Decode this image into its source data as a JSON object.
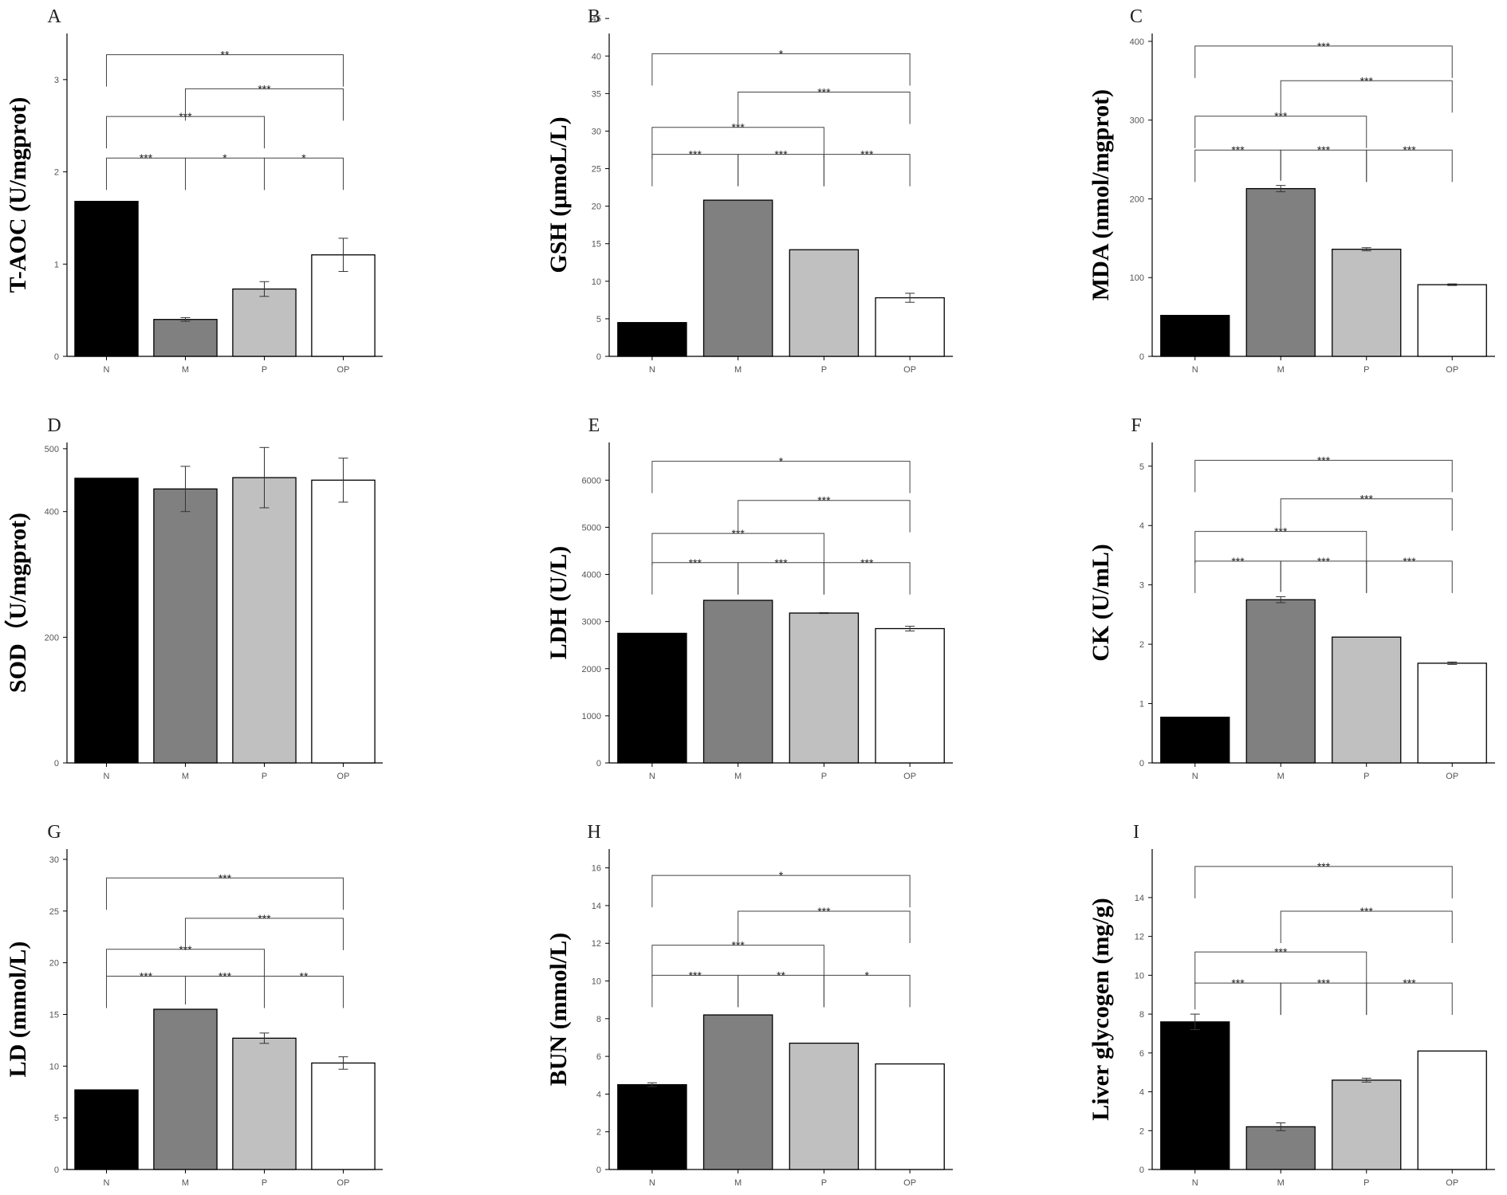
{
  "chart_data": [
    {
      "panel": "A",
      "type": "bar",
      "ylabel": "T-AOC (U/mgprot)",
      "categories": [
        "N",
        "M",
        "P",
        "OP"
      ],
      "values": [
        1.68,
        0.4,
        0.73,
        1.1
      ],
      "errors": [
        0,
        0.02,
        0.08,
        0.18
      ],
      "ylim": [
        0,
        3.5
      ],
      "yticks": [
        "0",
        "1",
        "2",
        "3"
      ],
      "ytick_values": [
        0,
        1,
        2,
        3
      ],
      "annotations": [
        {
          "from": 0,
          "to": 3,
          "level": 3.27,
          "text": "**"
        },
        {
          "from": 0,
          "to": 1,
          "level": 2.15,
          "text": "***"
        },
        {
          "from": 1,
          "to": 2,
          "level": 2.15,
          "text": "*"
        },
        {
          "from": 2,
          "to": 3,
          "level": 2.15,
          "text": "*"
        },
        {
          "from": 0,
          "to": 2,
          "level": 2.6,
          "text": "***"
        },
        {
          "from": 1,
          "to": 3,
          "level": 2.9,
          "text": "***"
        }
      ]
    },
    {
      "panel": "B",
      "type": "bar",
      "ylabel": "GSH (μmoL/L)",
      "categories": [
        "N",
        "M",
        "P",
        "OP"
      ],
      "values": [
        4.5,
        20.8,
        14.2,
        7.8
      ],
      "errors": [
        0,
        0,
        0,
        0.6
      ],
      "ylim": [
        0,
        43
      ],
      "yticks": [
        "0",
        "5",
        "10",
        "15",
        "20",
        "25",
        "30",
        "35",
        "40",
        "45"
      ],
      "ytick_values": [
        0,
        5,
        10,
        15,
        20,
        25,
        30,
        35,
        40,
        45
      ],
      "annotations": [
        {
          "from": 0,
          "to": 3,
          "level": 40.3,
          "text": "*"
        },
        {
          "from": 0,
          "to": 1,
          "level": 26.9,
          "text": "***"
        },
        {
          "from": 1,
          "to": 2,
          "level": 26.9,
          "text": "***"
        },
        {
          "from": 2,
          "to": 3,
          "level": 26.9,
          "text": "***"
        },
        {
          "from": 0,
          "to": 2,
          "level": 30.5,
          "text": "***"
        },
        {
          "from": 1,
          "to": 3,
          "level": 35.2,
          "text": "***"
        }
      ]
    },
    {
      "panel": "C",
      "type": "bar",
      "ylabel": "MDA (nmol/mgprot)",
      "categories": [
        "N",
        "M",
        "P",
        "OP"
      ],
      "values": [
        52,
        213,
        136,
        91
      ],
      "errors": [
        0,
        4,
        2,
        1
      ],
      "ylim": [
        0,
        410
      ],
      "yticks": [
        "0",
        "100",
        "200",
        "300",
        "400"
      ],
      "ytick_values": [
        0,
        100,
        200,
        300,
        400
      ],
      "annotations": [
        {
          "from": 0,
          "to": 3,
          "level": 394,
          "text": "***"
        },
        {
          "from": 0,
          "to": 1,
          "level": 262,
          "text": "***"
        },
        {
          "from": 1,
          "to": 2,
          "level": 262,
          "text": "***"
        },
        {
          "from": 2,
          "to": 3,
          "level": 262,
          "text": "***"
        },
        {
          "from": 0,
          "to": 2,
          "level": 305,
          "text": "***"
        },
        {
          "from": 1,
          "to": 3,
          "level": 350,
          "text": "***"
        }
      ]
    },
    {
      "panel": "D",
      "type": "bar",
      "ylabel": "SOD（U/mgprot)",
      "categories": [
        "N",
        "M",
        "P",
        "OP"
      ],
      "values": [
        453,
        436,
        454,
        450
      ],
      "errors": [
        0,
        36,
        48,
        35
      ],
      "ylim": [
        0,
        510
      ],
      "yticks": [
        "0",
        "200",
        "400",
        "500"
      ],
      "ytick_values": [
        0,
        200,
        400,
        500
      ],
      "annotations": []
    },
    {
      "panel": "E",
      "type": "bar",
      "ylabel": "LDH (U/L)",
      "categories": [
        "N",
        "M",
        "P",
        "OP"
      ],
      "values": [
        2750,
        3450,
        3180,
        2850
      ],
      "errors": [
        0,
        0,
        10,
        50
      ],
      "ylim": [
        0,
        6800
      ],
      "yticks": [
        "0",
        "1000",
        "2000",
        "3000",
        "4000",
        "5000",
        "6000"
      ],
      "ytick_values": [
        0,
        1000,
        2000,
        3000,
        4000,
        5000,
        6000
      ],
      "annotations": [
        {
          "from": 0,
          "to": 3,
          "level": 6400,
          "text": "*"
        },
        {
          "from": 0,
          "to": 1,
          "level": 4250,
          "text": "***"
        },
        {
          "from": 1,
          "to": 2,
          "level": 4250,
          "text": "***"
        },
        {
          "from": 2,
          "to": 3,
          "level": 4250,
          "text": "***"
        },
        {
          "from": 0,
          "to": 2,
          "level": 4870,
          "text": "***"
        },
        {
          "from": 1,
          "to": 3,
          "level": 5570,
          "text": "***"
        }
      ]
    },
    {
      "panel": "F",
      "type": "bar",
      "ylabel": "CK (U/mL)",
      "categories": [
        "N",
        "M",
        "P",
        "OP"
      ],
      "values": [
        0.77,
        2.75,
        2.12,
        1.68
      ],
      "errors": [
        0,
        0.05,
        0,
        0.02
      ],
      "ylim": [
        0,
        5.4
      ],
      "yticks": [
        "0",
        "1",
        "2",
        "3",
        "4",
        "5"
      ],
      "ytick_values": [
        0,
        1,
        2,
        3,
        4,
        5
      ],
      "annotations": [
        {
          "from": 0,
          "to": 3,
          "level": 5.1,
          "text": "***"
        },
        {
          "from": 0,
          "to": 1,
          "level": 3.4,
          "text": "***"
        },
        {
          "from": 1,
          "to": 2,
          "level": 3.4,
          "text": "***"
        },
        {
          "from": 2,
          "to": 3,
          "level": 3.4,
          "text": "***"
        },
        {
          "from": 0,
          "to": 2,
          "level": 3.9,
          "text": "***"
        },
        {
          "from": 1,
          "to": 3,
          "level": 4.45,
          "text": "***"
        }
      ]
    },
    {
      "panel": "G",
      "type": "bar",
      "ylabel": "LD (mmol/L)",
      "categories": [
        "N",
        "M",
        "P",
        "OP"
      ],
      "values": [
        7.7,
        15.5,
        12.7,
        10.3
      ],
      "errors": [
        0,
        0,
        0.5,
        0.6
      ],
      "ylim": [
        0,
        31
      ],
      "yticks": [
        "0",
        "5",
        "10",
        "15",
        "20",
        "25",
        "30"
      ],
      "ytick_values": [
        0,
        5,
        10,
        15,
        20,
        25,
        30
      ],
      "annotations": [
        {
          "from": 0,
          "to": 3,
          "level": 28.2,
          "text": "***"
        },
        {
          "from": 0,
          "to": 1,
          "level": 18.7,
          "text": "***"
        },
        {
          "from": 1,
          "to": 2,
          "level": 18.7,
          "text": "***"
        },
        {
          "from": 2,
          "to": 3,
          "level": 18.7,
          "text": "**"
        },
        {
          "from": 0,
          "to": 2,
          "level": 21.3,
          "text": "***"
        },
        {
          "from": 1,
          "to": 3,
          "level": 24.3,
          "text": "***"
        }
      ]
    },
    {
      "panel": "H",
      "type": "bar",
      "ylabel": "BUN (mmol/L)",
      "categories": [
        "N",
        "M",
        "P",
        "OP"
      ],
      "values": [
        4.5,
        8.2,
        6.7,
        5.6
      ],
      "errors": [
        0.1,
        0,
        0,
        0
      ],
      "ylim": [
        0,
        17
      ],
      "yticks": [
        "0",
        "2",
        "4",
        "6",
        "8",
        "10",
        "12",
        "14",
        "16"
      ],
      "ytick_values": [
        0,
        2,
        4,
        6,
        8,
        10,
        12,
        14,
        16
      ],
      "annotations": [
        {
          "from": 0,
          "to": 3,
          "level": 15.6,
          "text": "*"
        },
        {
          "from": 0,
          "to": 1,
          "level": 10.3,
          "text": "***"
        },
        {
          "from": 1,
          "to": 2,
          "level": 10.3,
          "text": "**"
        },
        {
          "from": 2,
          "to": 3,
          "level": 10.3,
          "text": "*"
        },
        {
          "from": 0,
          "to": 2,
          "level": 11.9,
          "text": "***"
        },
        {
          "from": 1,
          "to": 3,
          "level": 13.7,
          "text": "***"
        }
      ]
    },
    {
      "panel": "I",
      "type": "bar",
      "ylabel": "Liver glycogen (mg/g)",
      "categories": [
        "N",
        "M",
        "P",
        "OP"
      ],
      "values": [
        7.6,
        2.2,
        4.6,
        6.1
      ],
      "errors": [
        0.4,
        0.2,
        0.1,
        0
      ],
      "ylim": [
        0,
        16.5
      ],
      "yticks": [
        "0",
        "2",
        "4",
        "6",
        "8",
        "10",
        "12",
        "14"
      ],
      "ytick_values": [
        0,
        2,
        4,
        6,
        8,
        10,
        12,
        14
      ],
      "annotations": [
        {
          "from": 0,
          "to": 3,
          "level": 15.6,
          "text": "***"
        },
        {
          "from": 0,
          "to": 1,
          "level": 9.6,
          "text": "***"
        },
        {
          "from": 1,
          "to": 2,
          "level": 9.6,
          "text": "***"
        },
        {
          "from": 2,
          "to": 3,
          "level": 9.6,
          "text": "***"
        },
        {
          "from": 0,
          "to": 2,
          "level": 11.2,
          "text": "***"
        },
        {
          "from": 1,
          "to": 3,
          "level": 13.3,
          "text": "***"
        }
      ]
    }
  ],
  "colors": {
    "N": "#000000",
    "M": "#808080",
    "P": "#c0c0c0",
    "OP": "#ffffff",
    "outline": "#000000"
  }
}
